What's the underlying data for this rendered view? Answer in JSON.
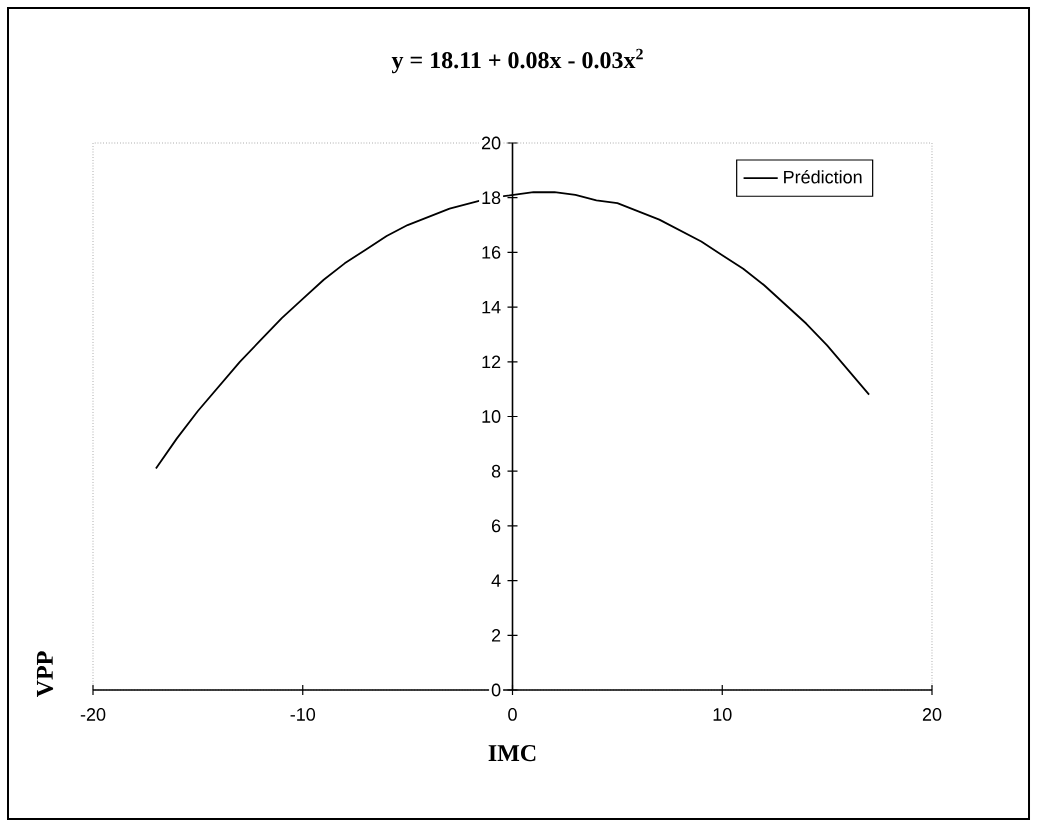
{
  "chart_data": {
    "type": "line",
    "title": "y = 18.11 + 0.08x - 0.03x$^{2}$",
    "xlabel": "IMC",
    "ylabel": "VPP",
    "x": [
      -17,
      -16,
      -15,
      -14,
      -13,
      -12,
      -11,
      -10,
      -9,
      -8,
      -7,
      -6,
      -5,
      -4,
      -3,
      -2,
      -1,
      0,
      1,
      2,
      3,
      4,
      5,
      6,
      7,
      8,
      9,
      10,
      11,
      12,
      13,
      14,
      15,
      16,
      17
    ],
    "series": [
      {
        "name": "Prédiction",
        "color": "#000000",
        "values": [
          8.1,
          9.2,
          10.2,
          11.1,
          12.0,
          12.8,
          13.6,
          14.3,
          15.0,
          15.6,
          16.1,
          16.6,
          17.0,
          17.3,
          17.6,
          17.8,
          18.0,
          18.1,
          18.2,
          18.2,
          18.1,
          17.9,
          17.8,
          17.5,
          17.2,
          16.8,
          16.4,
          15.9,
          15.4,
          14.8,
          14.1,
          13.4,
          12.6,
          11.7,
          10.8
        ]
      }
    ],
    "xlim": [
      -20,
      20
    ],
    "ylim": [
      0,
      20
    ],
    "xticks": [
      -20,
      -10,
      0,
      10,
      20
    ],
    "yticks": [
      0,
      2,
      4,
      6,
      8,
      10,
      12,
      14,
      16,
      18,
      20
    ],
    "legend": "top right",
    "marker": "none"
  }
}
